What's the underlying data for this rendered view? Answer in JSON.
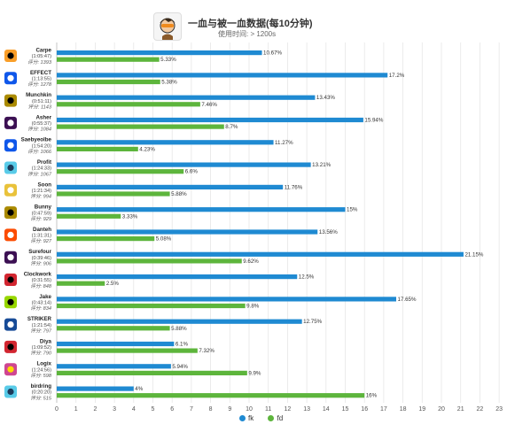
{
  "header": {
    "title": "一血与被一血数据(每10分钟)",
    "subtitle": "使用时间: > 1200s",
    "hero_icon": "hero-portrait-icon"
  },
  "legend": {
    "placement": "bottom-center",
    "items": [
      {
        "label": "fk",
        "color": "#1f8ad2"
      },
      {
        "label": "fd",
        "color": "#5db53c"
      }
    ]
  },
  "chart_data": {
    "type": "bar",
    "orientation": "horizontal",
    "xlim": [
      0,
      23
    ],
    "x_ticks": [
      0,
      1,
      2,
      3,
      4,
      5,
      6,
      7,
      8,
      9,
      10,
      11,
      12,
      13,
      14,
      15,
      16,
      17,
      18,
      19,
      20,
      21,
      22,
      23
    ],
    "grid": true,
    "categories": [
      {
        "name": "Carpe",
        "time": "(1:05:47)",
        "score": "评分: 1393",
        "team_icon": "philadelphia-fusion-icon"
      },
      {
        "name": "EFFECT",
        "time": "(1:13:55)",
        "score": "评分: 1278",
        "team_icon": "dallas-fuel-icon"
      },
      {
        "name": "Munchkin",
        "time": "(0:51:11)",
        "score": "评分: 1143",
        "team_icon": "seoul-dynasty-icon"
      },
      {
        "name": "Asher",
        "time": "(0:55:37)",
        "score": "评分: 1084",
        "team_icon": "la-gladiators-icon"
      },
      {
        "name": "Saebyeolbe",
        "time": "(1:54:20)",
        "score": "评分: 1066",
        "team_icon": "new-york-excelsior-icon"
      },
      {
        "name": "Profit",
        "time": "(1:24:33)",
        "score": "评分: 1067",
        "team_icon": "london-spitfire-icon"
      },
      {
        "name": "Soon",
        "time": "(1:21:34)",
        "score": "评分: 994",
        "team_icon": "la-valiant-icon"
      },
      {
        "name": "Bunny",
        "time": "(0:47:59)",
        "score": "评分: 929",
        "team_icon": "seoul-dynasty-icon"
      },
      {
        "name": "Danteh",
        "time": "(1:31:31)",
        "score": "评分: 927",
        "team_icon": "san-francisco-shock-icon"
      },
      {
        "name": "Surefour",
        "time": "(0:39:46)",
        "score": "评分: 906",
        "team_icon": "la-gladiators-icon"
      },
      {
        "name": "Clockwork",
        "time": "(0:31:55)",
        "score": "评分: 848",
        "team_icon": "shanghai-dragons-icon"
      },
      {
        "name": "Jake",
        "time": "(0:43:14)",
        "score": "评分: 834",
        "team_icon": "houston-outlaws-icon"
      },
      {
        "name": "STRIKER",
        "time": "(1:21:54)",
        "score": "评分: 797",
        "team_icon": "boston-uprising-icon"
      },
      {
        "name": "Diya",
        "time": "(1:09:52)",
        "score": "评分: 790",
        "team_icon": "shanghai-dragons-icon"
      },
      {
        "name": "Logix",
        "time": "(1:24:56)",
        "score": "评分: 598",
        "team_icon": "florida-mayhem-icon"
      },
      {
        "name": "birdring",
        "time": "(0:20:20)",
        "score": "评分: 515",
        "team_icon": "london-spitfire-icon"
      }
    ],
    "series": [
      {
        "name": "fk",
        "color": "#1f8ad2",
        "values": [
          10.67,
          17.2,
          13.43,
          15.94,
          11.27,
          13.21,
          11.76,
          15,
          13.56,
          21.15,
          12.5,
          17.65,
          12.75,
          6.1,
          5.94,
          4
        ],
        "labels": [
          "10.67%",
          "17.2%",
          "13.43%",
          "15.94%",
          "11.27%",
          "13.21%",
          "11.76%",
          "15%",
          "13.56%",
          "21.15%",
          "12.5%",
          "17.65%",
          "12.75%",
          "6.1%",
          "5.94%",
          "4%"
        ]
      },
      {
        "name": "fd",
        "color": "#5db53c",
        "values": [
          5.33,
          5.38,
          7.46,
          8.7,
          4.23,
          6.6,
          5.88,
          3.33,
          5.08,
          9.62,
          2.5,
          9.8,
          5.88,
          7.32,
          9.9,
          16
        ],
        "labels": [
          "5.33%",
          "5.38%",
          "7.46%",
          "8.7%",
          "4.23%",
          "6.6%",
          "5.88%",
          "3.33%",
          "5.08%",
          "9.62%",
          "2.5%",
          "9.8%",
          "5.88%",
          "7.32%",
          "9.9%",
          "16%"
        ]
      }
    ]
  }
}
